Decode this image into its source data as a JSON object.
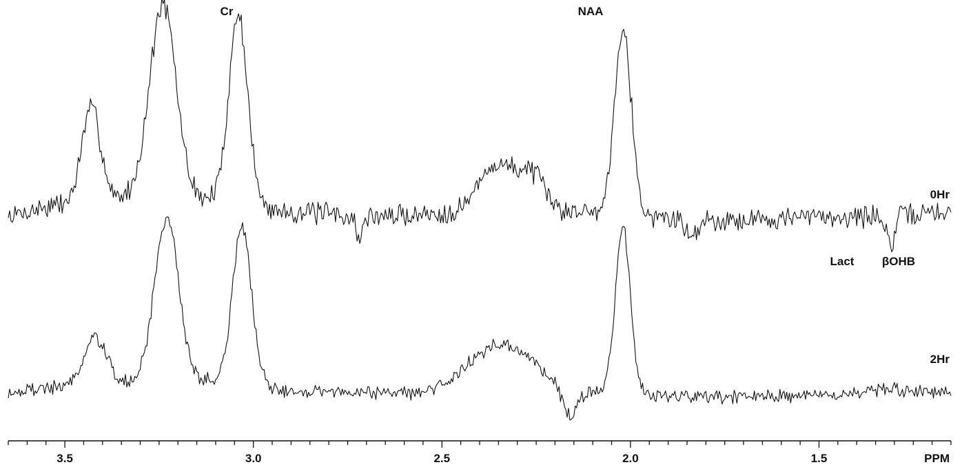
{
  "chart_data": {
    "type": "line",
    "x_axis": {
      "xlim": [
        3.65,
        1.15
      ],
      "reversed": true,
      "major_ticks": [
        3.5,
        3.0,
        2.5,
        2.0,
        1.5
      ],
      "tick_labels": [
        "3.5",
        "3.0",
        "2.5",
        "2.0",
        "1.5"
      ],
      "minor_tick_step": 0.05,
      "unit_label": "PPM"
    },
    "grid": false,
    "annotations": [
      {
        "text": "Cr",
        "x": 3.04
      },
      {
        "text": "NAA",
        "x": 2.02
      },
      {
        "text": "Lact",
        "x": 1.33
      },
      {
        "text": "βOHB",
        "x": 1.22
      }
    ],
    "series": [
      {
        "name": "0Hr",
        "noise": 0.13,
        "seed": 7,
        "baseline": [
          [
            3.65,
            0.2
          ],
          [
            3.55,
            0.35
          ],
          [
            3.4,
            0.45
          ],
          [
            3.3,
            0.5
          ],
          [
            3.1,
            0.45
          ],
          [
            2.95,
            0.3
          ],
          [
            2.7,
            0.2
          ],
          [
            2.5,
            0.25
          ],
          [
            2.2,
            0.3
          ],
          [
            2.1,
            0.28
          ],
          [
            1.95,
            0.2
          ],
          [
            1.8,
            0.15
          ],
          [
            1.5,
            0.2
          ],
          [
            1.3,
            0.22
          ],
          [
            1.15,
            0.28
          ]
        ],
        "peaks": [
          {
            "center": 3.43,
            "height": 1.35,
            "width": 0.025
          },
          {
            "center": 3.24,
            "height": 2.8,
            "width": 0.035
          },
          {
            "center": 3.04,
            "height": 2.75,
            "width": 0.025
          },
          {
            "center": 2.35,
            "height": 0.7,
            "width": 0.05
          },
          {
            "center": 2.26,
            "height": 0.45,
            "width": 0.03
          },
          {
            "center": 2.02,
            "height": 2.75,
            "width": 0.022
          },
          {
            "center": 2.72,
            "height": -0.35,
            "width": 0.008
          },
          {
            "center": 1.31,
            "height": -0.4,
            "width": 0.012
          },
          {
            "center": 1.84,
            "height": -0.3,
            "width": 0.012
          }
        ]
      },
      {
        "name": "2Hr",
        "noise": 0.1,
        "seed": 19,
        "baseline": [
          [
            3.65,
            0.1
          ],
          [
            3.5,
            0.2
          ],
          [
            3.35,
            0.25
          ],
          [
            3.1,
            0.3
          ],
          [
            2.95,
            0.15
          ],
          [
            2.7,
            0.1
          ],
          [
            2.5,
            0.1
          ],
          [
            2.2,
            0.15
          ],
          [
            2.1,
            0.1
          ],
          [
            1.95,
            0.05
          ],
          [
            1.8,
            0.0
          ],
          [
            1.5,
            0.05
          ],
          [
            1.3,
            0.15
          ],
          [
            1.15,
            0.05
          ]
        ],
        "peaks": [
          {
            "center": 3.42,
            "height": 0.8,
            "width": 0.03
          },
          {
            "center": 3.23,
            "height": 2.8,
            "width": 0.032
          },
          {
            "center": 3.03,
            "height": 2.7,
            "width": 0.025
          },
          {
            "center": 2.37,
            "height": 0.7,
            "width": 0.07
          },
          {
            "center": 2.27,
            "height": 0.3,
            "width": 0.05
          },
          {
            "center": 2.02,
            "height": 2.8,
            "width": 0.02
          },
          {
            "center": 2.16,
            "height": -0.45,
            "width": 0.018
          }
        ]
      }
    ]
  }
}
